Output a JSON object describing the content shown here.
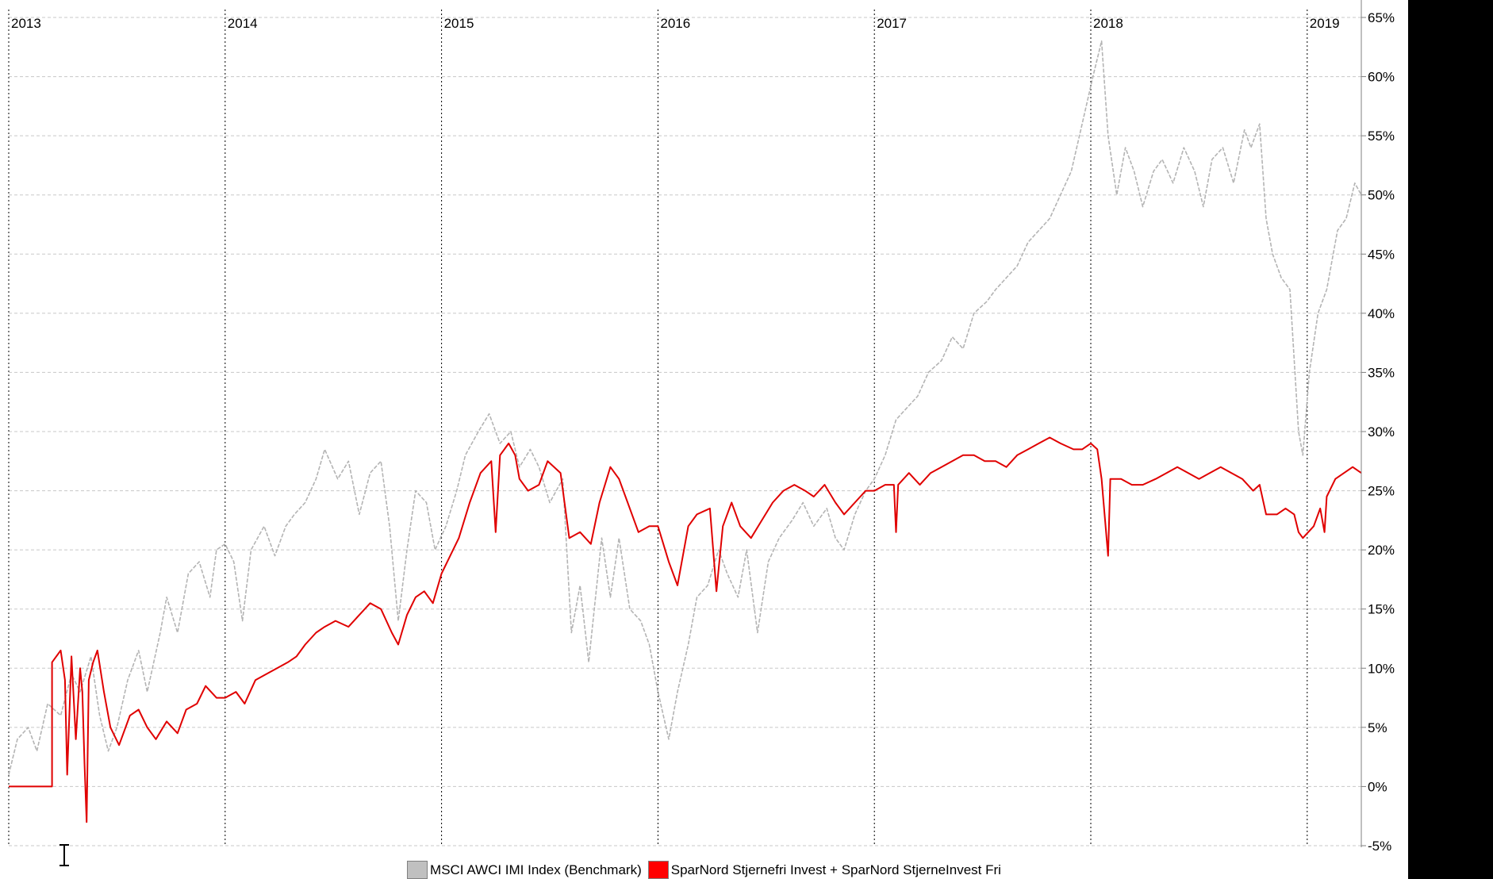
{
  "chart_data": {
    "type": "line",
    "title": "",
    "xlabel": "",
    "ylabel": "",
    "x_tick_labels": [
      "2013",
      "2014",
      "2015",
      "2016",
      "2017",
      "2018",
      "2019"
    ],
    "y_tick_labels": [
      "65%",
      "60%",
      "55%",
      "50%",
      "45%",
      "40%",
      "35%",
      "30%",
      "25%",
      "20%",
      "15%",
      "10%",
      "5%",
      "0%",
      "-5%"
    ],
    "xlim": [
      2013.0,
      2019.25
    ],
    "ylim": [
      -5,
      65
    ],
    "y_axis_side": "right",
    "grid": true,
    "legend_position": "bottom",
    "series": [
      {
        "name": "MSCI AWCI IMI Index (Benchmark)",
        "color": "#b4b4b4",
        "style": "dashed",
        "points": [
          [
            2013.0,
            1.0
          ],
          [
            2013.04,
            4.0
          ],
          [
            2013.09,
            5.0
          ],
          [
            2013.13,
            3.0
          ],
          [
            2013.18,
            7.0
          ],
          [
            2013.24,
            6.0
          ],
          [
            2013.29,
            9.5
          ],
          [
            2013.33,
            8.0
          ],
          [
            2013.38,
            11.0
          ],
          [
            2013.42,
            6.0
          ],
          [
            2013.46,
            3.0
          ],
          [
            2013.5,
            5.0
          ],
          [
            2013.55,
            9.0
          ],
          [
            2013.6,
            11.5
          ],
          [
            2013.64,
            8.0
          ],
          [
            2013.7,
            13.0
          ],
          [
            2013.73,
            16.0
          ],
          [
            2013.78,
            13.0
          ],
          [
            2013.83,
            18.0
          ],
          [
            2013.88,
            19.0
          ],
          [
            2013.93,
            16.0
          ],
          [
            2013.96,
            20.0
          ],
          [
            2014.0,
            20.5
          ],
          [
            2014.04,
            19.0
          ],
          [
            2014.08,
            14.0
          ],
          [
            2014.12,
            20.0
          ],
          [
            2014.18,
            22.0
          ],
          [
            2014.23,
            19.5
          ],
          [
            2014.28,
            22.0
          ],
          [
            2014.32,
            23.0
          ],
          [
            2014.37,
            24.0
          ],
          [
            2014.42,
            26.0
          ],
          [
            2014.46,
            28.5
          ],
          [
            2014.52,
            26.0
          ],
          [
            2014.57,
            27.5
          ],
          [
            2014.62,
            23.0
          ],
          [
            2014.67,
            26.5
          ],
          [
            2014.72,
            27.5
          ],
          [
            2014.76,
            22.0
          ],
          [
            2014.8,
            14.0
          ],
          [
            2014.84,
            20.0
          ],
          [
            2014.88,
            25.0
          ],
          [
            2014.93,
            24.0
          ],
          [
            2014.97,
            20.0
          ],
          [
            2015.02,
            22.0
          ],
          [
            2015.07,
            25.0
          ],
          [
            2015.11,
            28.0
          ],
          [
            2015.17,
            30.0
          ],
          [
            2015.22,
            31.5
          ],
          [
            2015.27,
            29.0
          ],
          [
            2015.32,
            30.0
          ],
          [
            2015.36,
            27.0
          ],
          [
            2015.41,
            28.5
          ],
          [
            2015.45,
            27.0
          ],
          [
            2015.5,
            24.0
          ],
          [
            2015.56,
            26.0
          ],
          [
            2015.6,
            13.0
          ],
          [
            2015.64,
            17.0
          ],
          [
            2015.68,
            10.5
          ],
          [
            2015.74,
            21.0
          ],
          [
            2015.78,
            16.0
          ],
          [
            2015.82,
            21.0
          ],
          [
            2015.87,
            15.0
          ],
          [
            2015.92,
            14.0
          ],
          [
            2015.96,
            12.0
          ],
          [
            2016.0,
            8.0
          ],
          [
            2016.05,
            4.0
          ],
          [
            2016.09,
            8.0
          ],
          [
            2016.14,
            12.0
          ],
          [
            2016.18,
            16.0
          ],
          [
            2016.23,
            17.0
          ],
          [
            2016.28,
            20.0
          ],
          [
            2016.32,
            18.0
          ],
          [
            2016.37,
            16.0
          ],
          [
            2016.41,
            20.0
          ],
          [
            2016.46,
            13.0
          ],
          [
            2016.51,
            19.0
          ],
          [
            2016.56,
            21.0
          ],
          [
            2016.62,
            22.5
          ],
          [
            2016.67,
            24.0
          ],
          [
            2016.72,
            22.0
          ],
          [
            2016.78,
            23.5
          ],
          [
            2016.82,
            21.0
          ],
          [
            2016.86,
            20.0
          ],
          [
            2016.91,
            23.0
          ],
          [
            2016.96,
            25.0
          ],
          [
            2017.0,
            26.0
          ],
          [
            2017.05,
            28.0
          ],
          [
            2017.1,
            31.0
          ],
          [
            2017.15,
            32.0
          ],
          [
            2017.2,
            33.0
          ],
          [
            2017.25,
            35.0
          ],
          [
            2017.31,
            36.0
          ],
          [
            2017.36,
            38.0
          ],
          [
            2017.41,
            37.0
          ],
          [
            2017.46,
            40.0
          ],
          [
            2017.52,
            41.0
          ],
          [
            2017.56,
            42.0
          ],
          [
            2017.61,
            43.0
          ],
          [
            2017.66,
            44.0
          ],
          [
            2017.71,
            46.0
          ],
          [
            2017.76,
            47.0
          ],
          [
            2017.81,
            48.0
          ],
          [
            2017.86,
            50.0
          ],
          [
            2017.91,
            52.0
          ],
          [
            2017.96,
            56.0
          ],
          [
            2018.01,
            60.0
          ],
          [
            2018.05,
            63.0
          ],
          [
            2018.08,
            55.0
          ],
          [
            2018.12,
            50.0
          ],
          [
            2018.16,
            54.0
          ],
          [
            2018.2,
            52.0
          ],
          [
            2018.24,
            49.0
          ],
          [
            2018.29,
            52.0
          ],
          [
            2018.33,
            53.0
          ],
          [
            2018.38,
            51.0
          ],
          [
            2018.43,
            54.0
          ],
          [
            2018.48,
            52.0
          ],
          [
            2018.52,
            49.0
          ],
          [
            2018.56,
            53.0
          ],
          [
            2018.61,
            54.0
          ],
          [
            2018.66,
            51.0
          ],
          [
            2018.71,
            55.5
          ],
          [
            2018.74,
            54.0
          ],
          [
            2018.78,
            56.0
          ],
          [
            2018.81,
            48.0
          ],
          [
            2018.84,
            45.0
          ],
          [
            2018.88,
            43.0
          ],
          [
            2018.92,
            42.0
          ],
          [
            2018.96,
            30.0
          ],
          [
            2018.98,
            28.0
          ],
          [
            2019.01,
            35.0
          ],
          [
            2019.05,
            40.0
          ],
          [
            2019.09,
            42.0
          ],
          [
            2019.14,
            47.0
          ],
          [
            2019.18,
            48.0
          ],
          [
            2019.22,
            51.0
          ],
          [
            2019.25,
            50.0
          ]
        ]
      },
      {
        "name": "SparNord Stjernefri Invest + SparNord StjerneInvest Fri",
        "color": "#e00000",
        "style": "solid",
        "points": [
          [
            2013.0,
            0.0
          ],
          [
            2013.2,
            0.0
          ],
          [
            2013.2,
            10.5
          ],
          [
            2013.24,
            11.5
          ],
          [
            2013.26,
            9.0
          ],
          [
            2013.27,
            1.0
          ],
          [
            2013.29,
            11.0
          ],
          [
            2013.31,
            4.0
          ],
          [
            2013.33,
            10.0
          ],
          [
            2013.34,
            8.0
          ],
          [
            2013.35,
            2.0
          ],
          [
            2013.36,
            -3.0
          ],
          [
            2013.37,
            9.0
          ],
          [
            2013.39,
            10.5
          ],
          [
            2013.41,
            11.5
          ],
          [
            2013.44,
            8.0
          ],
          [
            2013.47,
            5.0
          ],
          [
            2013.51,
            3.5
          ],
          [
            2013.56,
            6.0
          ],
          [
            2013.6,
            6.5
          ],
          [
            2013.64,
            5.0
          ],
          [
            2013.68,
            4.0
          ],
          [
            2013.73,
            5.5
          ],
          [
            2013.78,
            4.5
          ],
          [
            2013.82,
            6.5
          ],
          [
            2013.87,
            7.0
          ],
          [
            2013.91,
            8.5
          ],
          [
            2013.96,
            7.5
          ],
          [
            2014.0,
            7.5
          ],
          [
            2014.05,
            8.0
          ],
          [
            2014.09,
            7.0
          ],
          [
            2014.14,
            9.0
          ],
          [
            2014.19,
            9.5
          ],
          [
            2014.24,
            10.0
          ],
          [
            2014.29,
            10.5
          ],
          [
            2014.33,
            11.0
          ],
          [
            2014.37,
            12.0
          ],
          [
            2014.42,
            13.0
          ],
          [
            2014.46,
            13.5
          ],
          [
            2014.51,
            14.0
          ],
          [
            2014.57,
            13.5
          ],
          [
            2014.62,
            14.5
          ],
          [
            2014.67,
            15.5
          ],
          [
            2014.72,
            15.0
          ],
          [
            2014.77,
            13.0
          ],
          [
            2014.8,
            12.0
          ],
          [
            2014.84,
            14.5
          ],
          [
            2014.88,
            16.0
          ],
          [
            2014.92,
            16.5
          ],
          [
            2014.96,
            15.5
          ],
          [
            2015.0,
            18.0
          ],
          [
            2015.04,
            19.5
          ],
          [
            2015.08,
            21.0
          ],
          [
            2015.13,
            24.0
          ],
          [
            2015.18,
            26.5
          ],
          [
            2015.23,
            27.5
          ],
          [
            2015.25,
            21.5
          ],
          [
            2015.27,
            28.0
          ],
          [
            2015.31,
            29.0
          ],
          [
            2015.34,
            28.0
          ],
          [
            2015.36,
            26.0
          ],
          [
            2015.4,
            25.0
          ],
          [
            2015.45,
            25.5
          ],
          [
            2015.49,
            27.5
          ],
          [
            2015.55,
            26.5
          ],
          [
            2015.59,
            21.0
          ],
          [
            2015.64,
            21.5
          ],
          [
            2015.69,
            20.5
          ],
          [
            2015.73,
            24.0
          ],
          [
            2015.78,
            27.0
          ],
          [
            2015.82,
            26.0
          ],
          [
            2015.86,
            24.0
          ],
          [
            2015.91,
            21.5
          ],
          [
            2015.96,
            22.0
          ],
          [
            2016.0,
            22.0
          ],
          [
            2016.05,
            19.0
          ],
          [
            2016.09,
            17.0
          ],
          [
            2016.14,
            22.0
          ],
          [
            2016.18,
            23.0
          ],
          [
            2016.24,
            23.5
          ],
          [
            2016.27,
            16.5
          ],
          [
            2016.3,
            22.0
          ],
          [
            2016.34,
            24.0
          ],
          [
            2016.38,
            22.0
          ],
          [
            2016.43,
            21.0
          ],
          [
            2016.48,
            22.5
          ],
          [
            2016.53,
            24.0
          ],
          [
            2016.58,
            25.0
          ],
          [
            2016.63,
            25.5
          ],
          [
            2016.68,
            25.0
          ],
          [
            2016.72,
            24.5
          ],
          [
            2016.77,
            25.5
          ],
          [
            2016.82,
            24.0
          ],
          [
            2016.86,
            23.0
          ],
          [
            2016.91,
            24.0
          ],
          [
            2016.96,
            25.0
          ],
          [
            2017.0,
            25.0
          ],
          [
            2017.05,
            25.5
          ],
          [
            2017.09,
            25.5
          ],
          [
            2017.1,
            21.5
          ],
          [
            2017.11,
            25.5
          ],
          [
            2017.16,
            26.5
          ],
          [
            2017.21,
            25.5
          ],
          [
            2017.26,
            26.5
          ],
          [
            2017.31,
            27.0
          ],
          [
            2017.36,
            27.5
          ],
          [
            2017.41,
            28.0
          ],
          [
            2017.46,
            28.0
          ],
          [
            2017.51,
            27.5
          ],
          [
            2017.56,
            27.5
          ],
          [
            2017.61,
            27.0
          ],
          [
            2017.66,
            28.0
          ],
          [
            2017.71,
            28.5
          ],
          [
            2017.76,
            29.0
          ],
          [
            2017.81,
            29.5
          ],
          [
            2017.86,
            29.0
          ],
          [
            2017.92,
            28.5
          ],
          [
            2017.96,
            28.5
          ],
          [
            2018.0,
            29.0
          ],
          [
            2018.03,
            28.5
          ],
          [
            2018.05,
            26.0
          ],
          [
            2018.08,
            19.5
          ],
          [
            2018.09,
            26.0
          ],
          [
            2018.14,
            26.0
          ],
          [
            2018.19,
            25.5
          ],
          [
            2018.24,
            25.5
          ],
          [
            2018.3,
            26.0
          ],
          [
            2018.35,
            26.5
          ],
          [
            2018.4,
            27.0
          ],
          [
            2018.45,
            26.5
          ],
          [
            2018.5,
            26.0
          ],
          [
            2018.55,
            26.5
          ],
          [
            2018.6,
            27.0
          ],
          [
            2018.65,
            26.5
          ],
          [
            2018.7,
            26.0
          ],
          [
            2018.75,
            25.0
          ],
          [
            2018.78,
            25.5
          ],
          [
            2018.81,
            23.0
          ],
          [
            2018.86,
            23.0
          ],
          [
            2018.9,
            23.5
          ],
          [
            2018.94,
            23.0
          ],
          [
            2018.96,
            21.5
          ],
          [
            2018.98,
            21.0
          ],
          [
            2019.03,
            22.0
          ],
          [
            2019.06,
            23.5
          ],
          [
            2019.08,
            21.5
          ],
          [
            2019.09,
            24.5
          ],
          [
            2019.13,
            26.0
          ],
          [
            2019.17,
            26.5
          ],
          [
            2019.21,
            27.0
          ],
          [
            2019.25,
            26.5
          ]
        ]
      }
    ]
  },
  "legend": {
    "items": [
      {
        "label": "MSCI AWCI IMI Index (Benchmark)",
        "color": "#c0c0c0"
      },
      {
        "label": "SparNord Stjernefri Invest + SparNord StjerneInvest Fri",
        "color": "#ff0000"
      }
    ]
  },
  "icons": {
    "cursor": "text-cursor-icon"
  }
}
